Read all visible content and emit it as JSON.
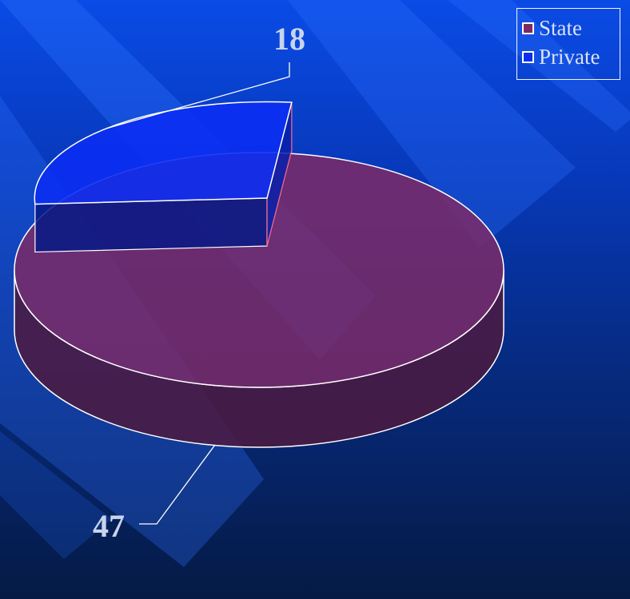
{
  "chart_data": {
    "type": "pie",
    "categories": [
      "State",
      "Private"
    ],
    "values": [
      47,
      18
    ],
    "series": [
      {
        "values": [
          47,
          18
        ]
      }
    ],
    "data_labels": [
      "47",
      "18"
    ],
    "legend": [
      "State",
      "Private"
    ],
    "legend_position": "top-right",
    "colors": {
      "State": "#7d2a66",
      "Private": "#0b2ef2"
    },
    "grid": false
  },
  "legend": {
    "items": [
      {
        "label": "State",
        "color": "#7d2a66"
      },
      {
        "label": "Private",
        "color": "#0b2ef2"
      }
    ]
  },
  "colors": {
    "outline": "#ffffff",
    "label": "#c8d4ec"
  }
}
